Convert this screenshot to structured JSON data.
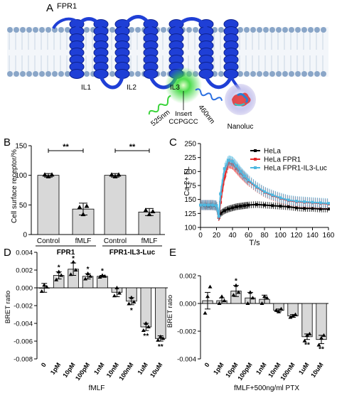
{
  "panels": {
    "A": {
      "letter": "A",
      "receptor_label": "FPR1",
      "loops": [
        "IL1",
        "IL2",
        "IL3"
      ],
      "emission_green": "525nm",
      "emission_blue": "460nm",
      "insert_label": "Insert",
      "insert_sequence": "CCPGCC",
      "luciferase_label": "Nanoluc",
      "colors": {
        "helix": "#1f3fd6",
        "membrane": "#8aa6c8",
        "glow": "#39d93a",
        "nanoluc": "#c9c9ef"
      }
    },
    "B": {
      "letter": "B"
    },
    "C": {
      "letter": "C"
    },
    "D": {
      "letter": "D"
    },
    "E": {
      "letter": "E"
    }
  },
  "chart_data": [
    {
      "panel": "B",
      "type": "bar",
      "ylabel": "Cell surface receptor/%",
      "ylim": [
        0,
        150
      ],
      "yticks": [
        0,
        50,
        100,
        150
      ],
      "categories": [
        "Control",
        "fMLF",
        "Control",
        "fMLF"
      ],
      "groups": [
        "FPR1",
        "FPR1-IL3-Luc"
      ],
      "values": [
        100,
        43,
        100,
        38
      ],
      "errors": [
        3,
        10,
        3,
        6
      ],
      "points": [
        [
          101,
          98,
          101
        ],
        [
          46,
          34,
          48
        ],
        [
          101,
          98,
          101
        ],
        [
          41,
          34,
          39
        ]
      ],
      "significance": [
        {
          "between": [
            0,
            1
          ],
          "label": "**"
        },
        {
          "between": [
            2,
            3
          ],
          "label": "**"
        }
      ]
    },
    {
      "panel": "C",
      "type": "line",
      "xlabel": "T/s",
      "ylabel": "Ca 2+ FL",
      "xlim": [
        0,
        160
      ],
      "ylim": [
        100,
        250
      ],
      "xticks": [
        0,
        20,
        40,
        60,
        80,
        100,
        120,
        140,
        160
      ],
      "yticks": [
        100,
        125,
        150,
        175,
        200,
        225,
        250
      ],
      "legend_position": "top-right",
      "x": [
        0,
        5,
        10,
        15,
        20,
        23,
        25,
        30,
        35,
        40,
        45,
        50,
        55,
        60,
        70,
        80,
        90,
        100,
        110,
        120,
        130,
        140,
        150,
        160
      ],
      "series": [
        {
          "name": "HeLa",
          "color": "#000000",
          "values": [
            140,
            139,
            138,
            139,
            138,
            118,
            125,
            130,
            133,
            135,
            137,
            138,
            139,
            140,
            141,
            140,
            139,
            138,
            137,
            135,
            134,
            134,
            133,
            133
          ]
        },
        {
          "name": "HeLa FPR1",
          "color": "#e52b2b",
          "values": [
            140,
            140,
            140,
            140,
            139,
            118,
            145,
            190,
            215,
            213,
            205,
            197,
            190,
            183,
            172,
            163,
            157,
            152,
            148,
            146,
            145,
            144,
            143,
            142
          ]
        },
        {
          "name": "HeLa FPR1-IL3-Luc",
          "color": "#4fb8e0",
          "values": [
            140,
            140,
            140,
            140,
            139,
            120,
            160,
            205,
            220,
            218,
            210,
            200,
            192,
            185,
            173,
            164,
            158,
            153,
            149,
            147,
            146,
            145,
            144,
            143
          ]
        }
      ]
    },
    {
      "panel": "D",
      "type": "bar",
      "xlabel": "fMLF",
      "ylabel": "BRET ratio",
      "ylim": [
        -0.008,
        0.004
      ],
      "yticks": [
        "-0.008",
        "-0.006",
        "-0.004",
        "-0.002",
        "0.000",
        "0.002",
        "0.004"
      ],
      "categories": [
        "0",
        "1pM",
        "10pM",
        "100pM",
        "1nM",
        "10nM",
        "100nM",
        "1uM",
        "10uM"
      ],
      "values": [
        0.0,
        0.0014,
        0.0021,
        0.0013,
        0.0013,
        -0.0005,
        -0.0015,
        -0.0044,
        -0.0057
      ],
      "errors": [
        0.0005,
        0.0004,
        0.0007,
        0.0003,
        0.0001,
        0.0005,
        0.0004,
        0.0004,
        0.0003
      ],
      "points": [
        [
          -0.0004,
          0.0003,
          0.0001
        ],
        [
          0.0009,
          0.0018,
          0.0014
        ],
        [
          0.0015,
          0.0029,
          0.002
        ],
        [
          0.001,
          0.0016,
          0.0013
        ],
        [
          0.0012,
          0.0014,
          0.0013
        ],
        [
          -0.0009,
          0.0,
          -0.0006
        ],
        [
          -0.0018,
          -0.0011,
          -0.0016
        ],
        [
          -0.0048,
          -0.004,
          -0.0044
        ],
        [
          -0.0059,
          -0.0055,
          -0.0057
        ]
      ],
      "significance": [
        "",
        "*",
        "*",
        "*",
        "*",
        "",
        "*",
        "**",
        "**"
      ]
    },
    {
      "panel": "E",
      "type": "bar",
      "xlabel": "fMLF+500ng/ml PTX",
      "ylabel": "BRET ratio",
      "ylim": [
        -0.004,
        0.002
      ],
      "yticks": [
        "-0.004",
        "-0.002",
        "0.000",
        "0.002"
      ],
      "categories": [
        "0",
        "1pM",
        "10pM",
        "100pM",
        "1nM",
        "10nM",
        "100nM",
        "1uM",
        "10uM"
      ],
      "values": [
        0.0002,
        0.0002,
        0.0009,
        0.0004,
        0.0003,
        -0.0005,
        -0.0009,
        -0.0024,
        -0.0026
      ],
      "errors": [
        0.0006,
        0.0002,
        0.0004,
        0.0004,
        0.0003,
        0.0001,
        0.0001,
        0.0002,
        0.0003
      ],
      "points": [
        [
          -0.0007,
          0.0005,
          0.0012
        ],
        [
          0.0,
          0.0005,
          0.0002
        ],
        [
          0.0006,
          0.0013,
          0.0008
        ],
        [
          0.0,
          0.0008,
          0.0004
        ],
        [
          0.0,
          0.0005,
          0.0004
        ],
        [
          -0.0005,
          -0.0006,
          -0.0004
        ],
        [
          -0.001,
          -0.0009,
          -0.0008
        ],
        [
          -0.0027,
          -0.0023,
          -0.0022
        ],
        [
          -0.003,
          -0.0025,
          -0.0023
        ]
      ],
      "significance": [
        "",
        "",
        "*",
        "",
        "",
        "",
        "",
        "**",
        "**"
      ]
    }
  ]
}
